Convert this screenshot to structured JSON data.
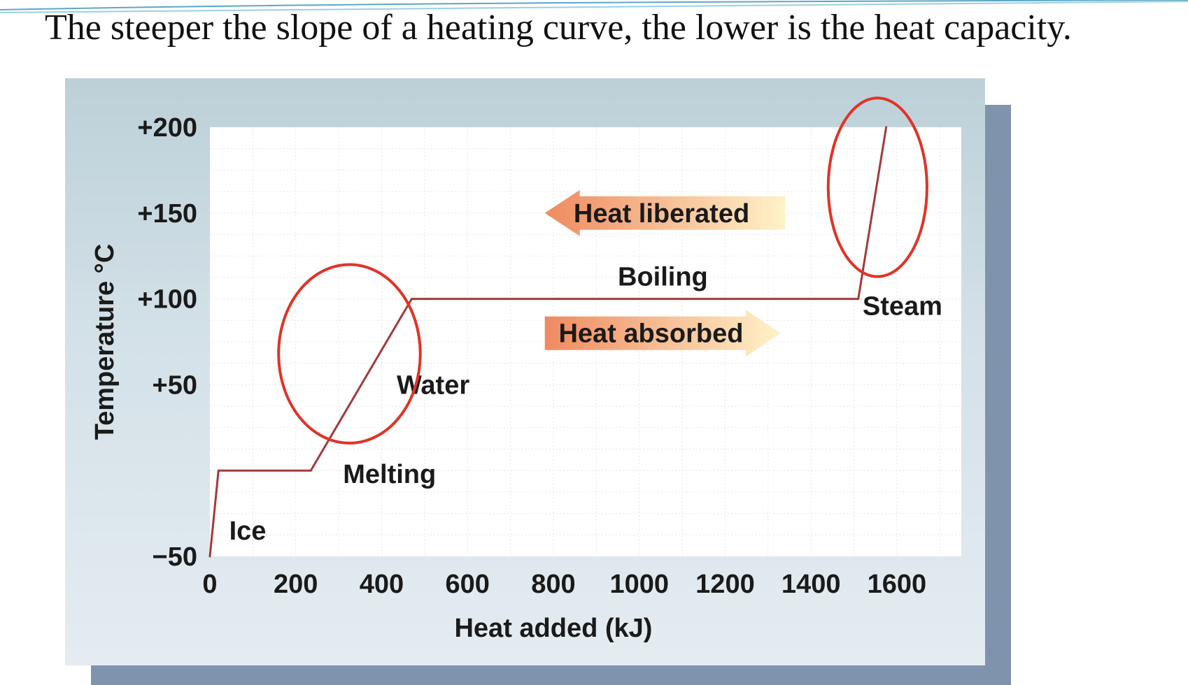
{
  "slide": {
    "title": "The steeper the slope of a heating curve, the lower is the heat capacity."
  },
  "chart_data": {
    "type": "line",
    "title": "",
    "xlabel": "Heat added (kJ)",
    "ylabel": "Temperature °C",
    "xlim": [
      0,
      1750
    ],
    "ylim": [
      -50,
      200
    ],
    "x_ticks": [
      0,
      200,
      400,
      600,
      800,
      1000,
      1200,
      1400,
      1600
    ],
    "x_tick_labels": [
      "0",
      "200",
      "400",
      "600",
      "800",
      "1000",
      "1200",
      "1400",
      "1600"
    ],
    "y_ticks": [
      -50,
      50,
      100,
      150,
      200
    ],
    "y_tick_labels": [
      "−50",
      "+50",
      "+100",
      "+150",
      "+200"
    ],
    "grid": true,
    "series": [
      {
        "color": "#a23a3a",
        "points": [
          {
            "x": 0,
            "y": -50
          },
          {
            "x": 20,
            "y": 0
          },
          {
            "x": 235,
            "y": 0
          },
          {
            "x": 470,
            "y": 100
          },
          {
            "x": 1510,
            "y": 100
          },
          {
            "x": 1575,
            "y": 200
          }
        ]
      }
    ],
    "region_labels": [
      {
        "text": "Ice",
        "x": 45,
        "y": -35
      },
      {
        "text": "Melting",
        "x": 310,
        "y": -2
      },
      {
        "text": "Water",
        "x": 435,
        "y": 50
      },
      {
        "text": "Boiling",
        "x": 950,
        "y": 113
      },
      {
        "text": "Steam",
        "x": 1520,
        "y": 96
      }
    ],
    "arrows": [
      {
        "text": "Heat liberated",
        "direction": "left",
        "x_start": 1340,
        "x_end": 780,
        "y": 150,
        "color_from": "#ef8a60",
        "color_to": "#fff2c9"
      },
      {
        "text": "Heat absorbed",
        "direction": "right",
        "x_start": 780,
        "x_end": 1330,
        "y": 80,
        "color_from": "#ef8a60",
        "color_to": "#fff2c9"
      }
    ],
    "annotations": [
      {
        "shape": "ellipse",
        "color": "#e03326",
        "cx": 325,
        "cy": 68,
        "rx": 165,
        "ry": 52
      },
      {
        "shape": "ellipse",
        "color": "#e03326",
        "cx": 1555,
        "cy": 165,
        "rx": 115,
        "ry": 52
      }
    ]
  }
}
